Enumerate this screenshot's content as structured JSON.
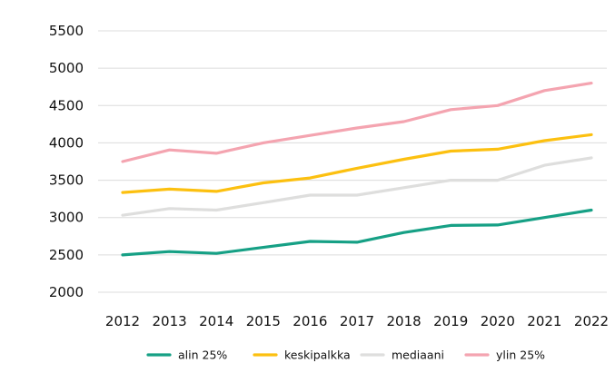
{
  "chart_data": {
    "type": "line",
    "title": "",
    "xlabel": "",
    "ylabel": "",
    "x": [
      2012,
      2013,
      2014,
      2015,
      2016,
      2017,
      2018,
      2019,
      2020,
      2021,
      2022
    ],
    "ylim": [
      2000,
      5500
    ],
    "yticks": [
      2000,
      2500,
      3000,
      3500,
      4000,
      4500,
      5000,
      5500
    ],
    "grid": true,
    "legend_position": "bottom",
    "series": [
      {
        "name": "alin 25%",
        "color": "#16a085",
        "values": [
          2500,
          2545,
          2520,
          2600,
          2680,
          2670,
          2800,
          2895,
          2900,
          3000,
          3100
        ]
      },
      {
        "name": "keskipalkka",
        "color": "#fcc010",
        "values": [
          3335,
          3380,
          3350,
          3465,
          3530,
          3660,
          3780,
          3890,
          3915,
          4030,
          4110
        ]
      },
      {
        "name": "mediaani",
        "color": "#dededd",
        "values": [
          3030,
          3120,
          3100,
          3200,
          3300,
          3300,
          3400,
          3500,
          3500,
          3700,
          3800
        ]
      },
      {
        "name": "ylin 25%",
        "color": "#f4a4b0",
        "values": [
          3750,
          3905,
          3860,
          4000,
          4100,
          4200,
          4285,
          4445,
          4500,
          4700,
          4800
        ]
      }
    ]
  }
}
